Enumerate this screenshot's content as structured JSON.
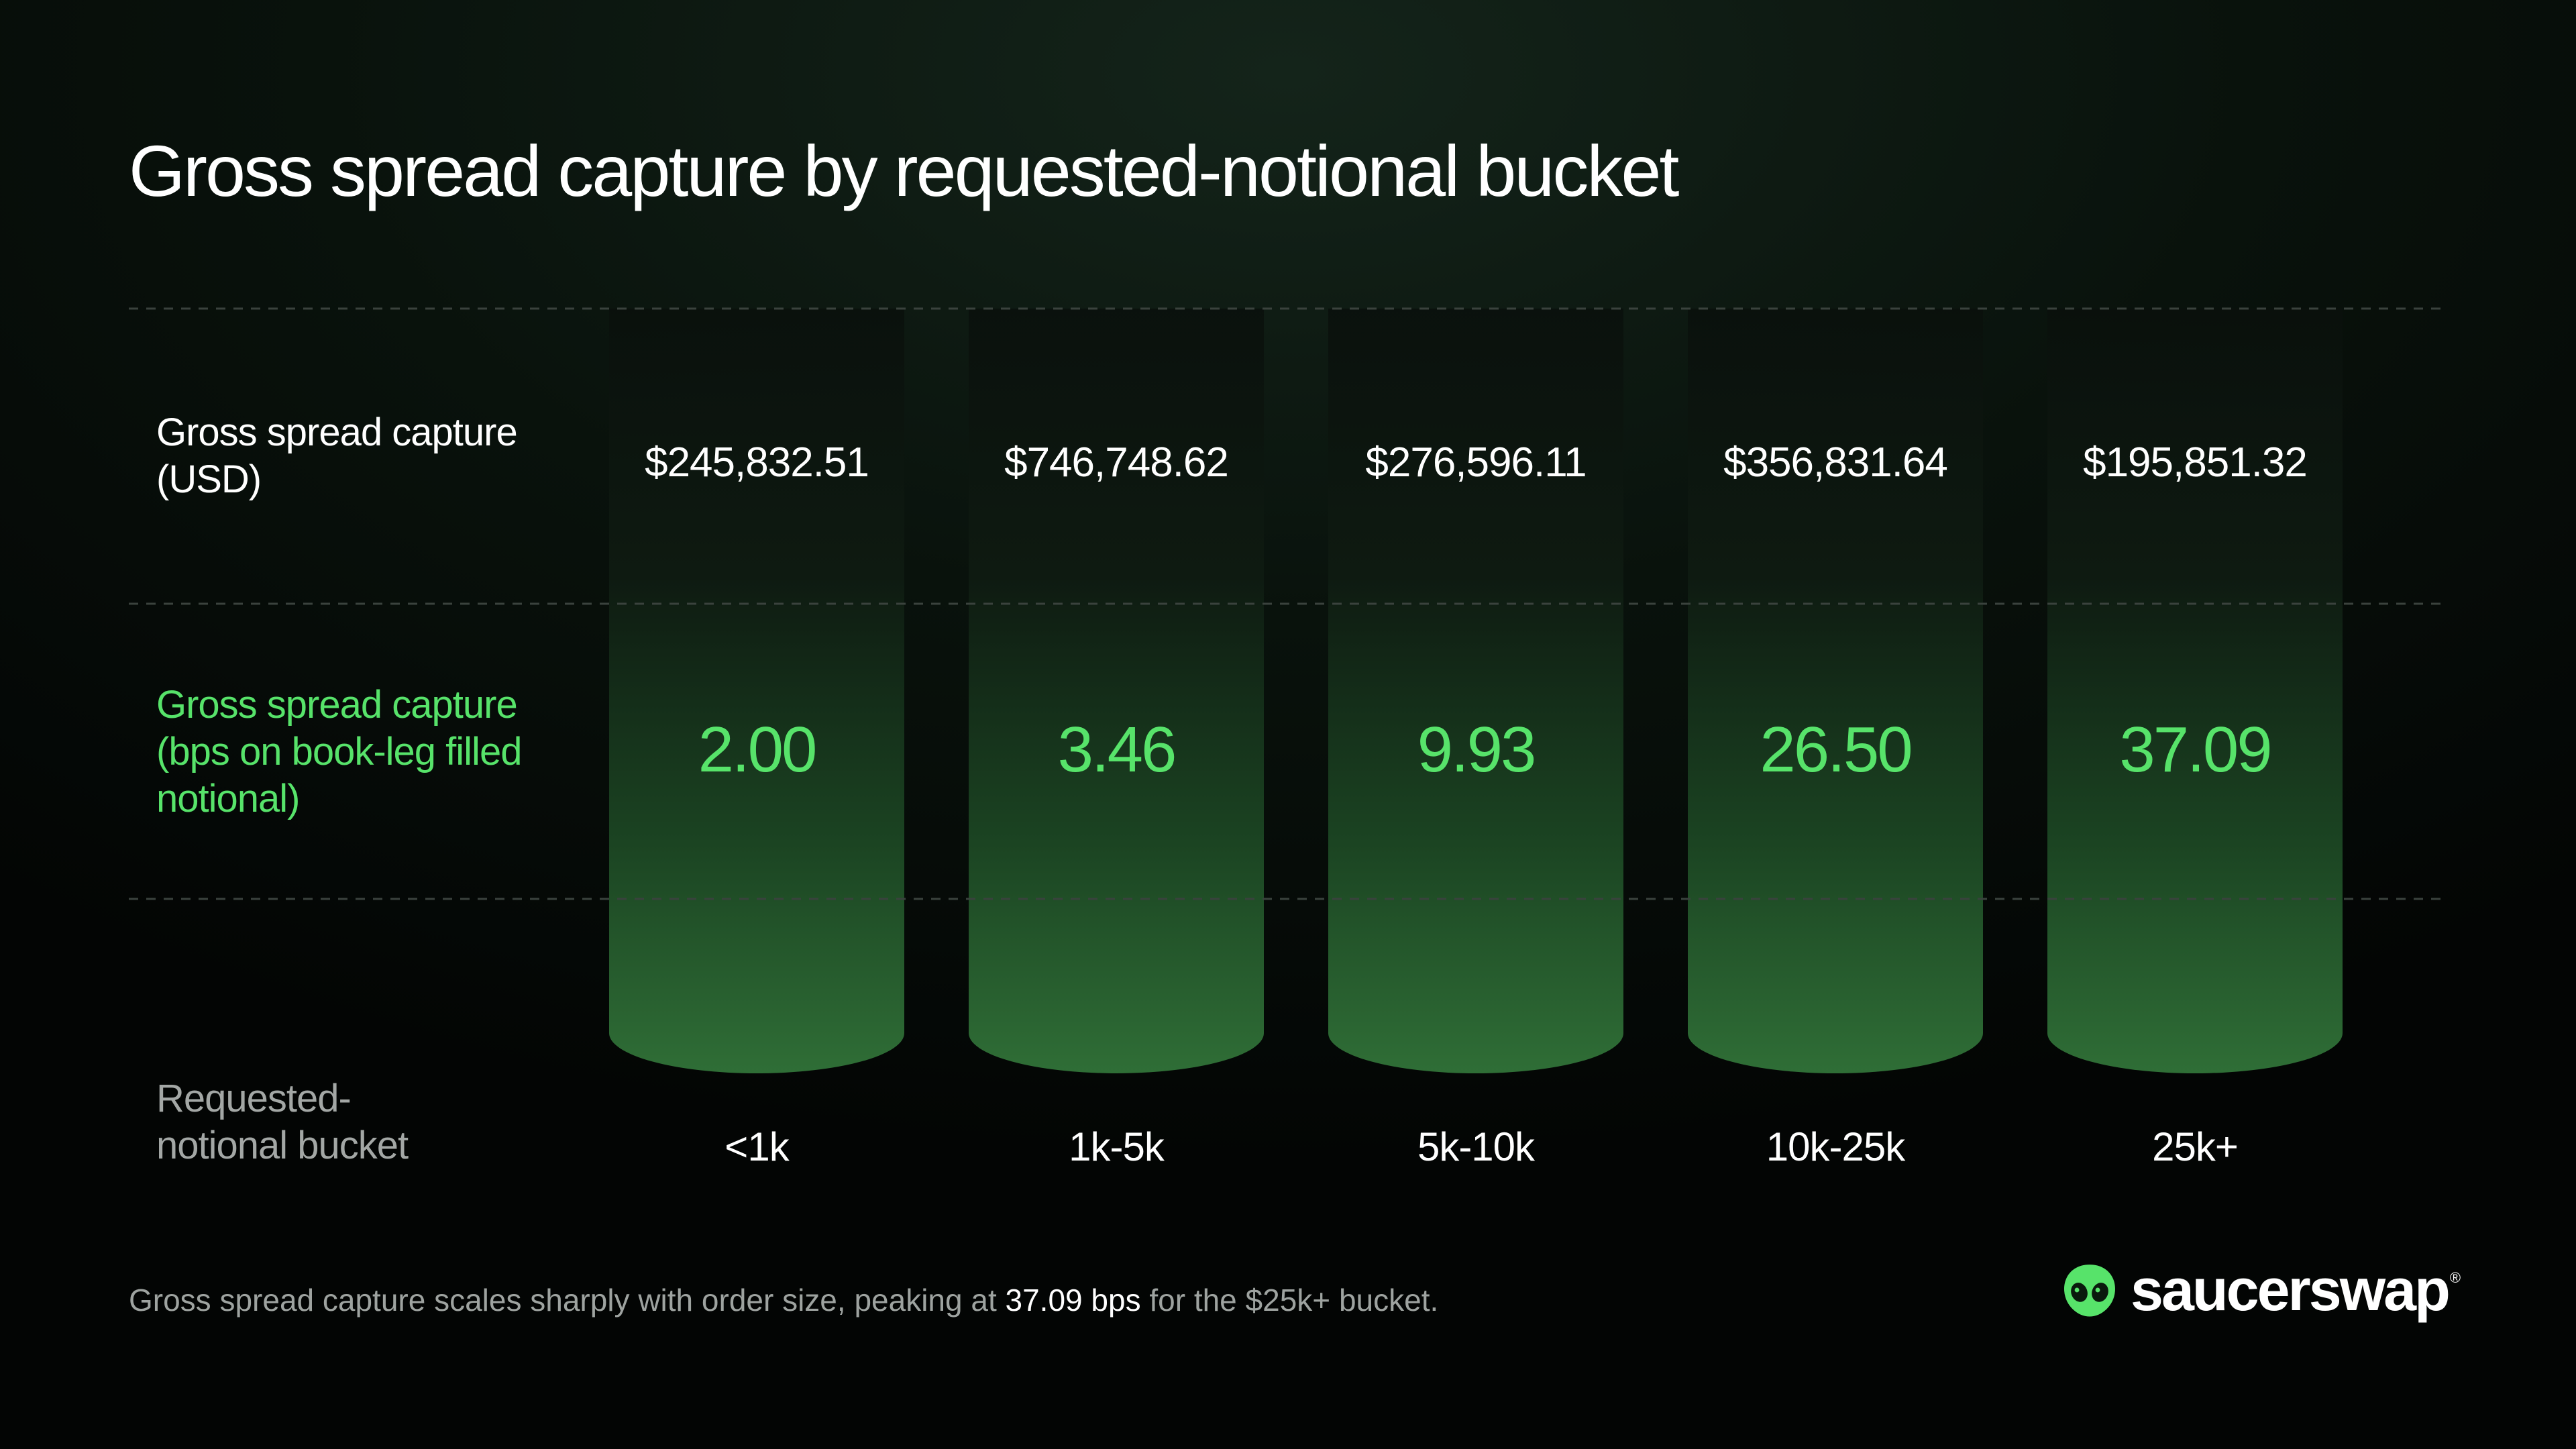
{
  "title": "Gross spread capture by requested-notional bucket",
  "rows": {
    "usd_label_line1": "Gross spread capture",
    "usd_label_line2": "(USD)",
    "bps_label_line1": "Gross spread capture",
    "bps_label_line2": "(bps on book-leg filled",
    "bps_label_line3": "notional)",
    "bucket_label_line1": "Requested-",
    "bucket_label_line2": "notional bucket"
  },
  "chart_data": {
    "type": "table",
    "title": "Gross spread capture by requested-notional bucket",
    "columns": [
      "<1k",
      "1k-5k",
      "5k-10k",
      "10k-25k",
      "25k+"
    ],
    "rows": [
      {
        "label": "Gross spread capture (USD)",
        "values": [
          "$245,832.51",
          "$746,748.62",
          "$276,596.11",
          "$356,831.64",
          "$195,851.32"
        ]
      },
      {
        "label": "Gross spread capture (bps on book-leg filled notional)",
        "values": [
          "2.00",
          "3.46",
          "9.93",
          "26.50",
          "37.09"
        ]
      }
    ],
    "row_header": "Requested-notional bucket"
  },
  "footnote": {
    "before": "Gross spread capture scales sharply with order size, peaking at ",
    "highlight": "37.09 bps",
    "after": " for the $25k+ bucket."
  },
  "brand": {
    "name": "saucerswap",
    "reg": "®",
    "logo_icon": "alien-face-icon"
  },
  "colors": {
    "accent_green": "#57e36a",
    "background": "#030504",
    "text": "#ffffff",
    "muted": "#a3a7a5"
  }
}
